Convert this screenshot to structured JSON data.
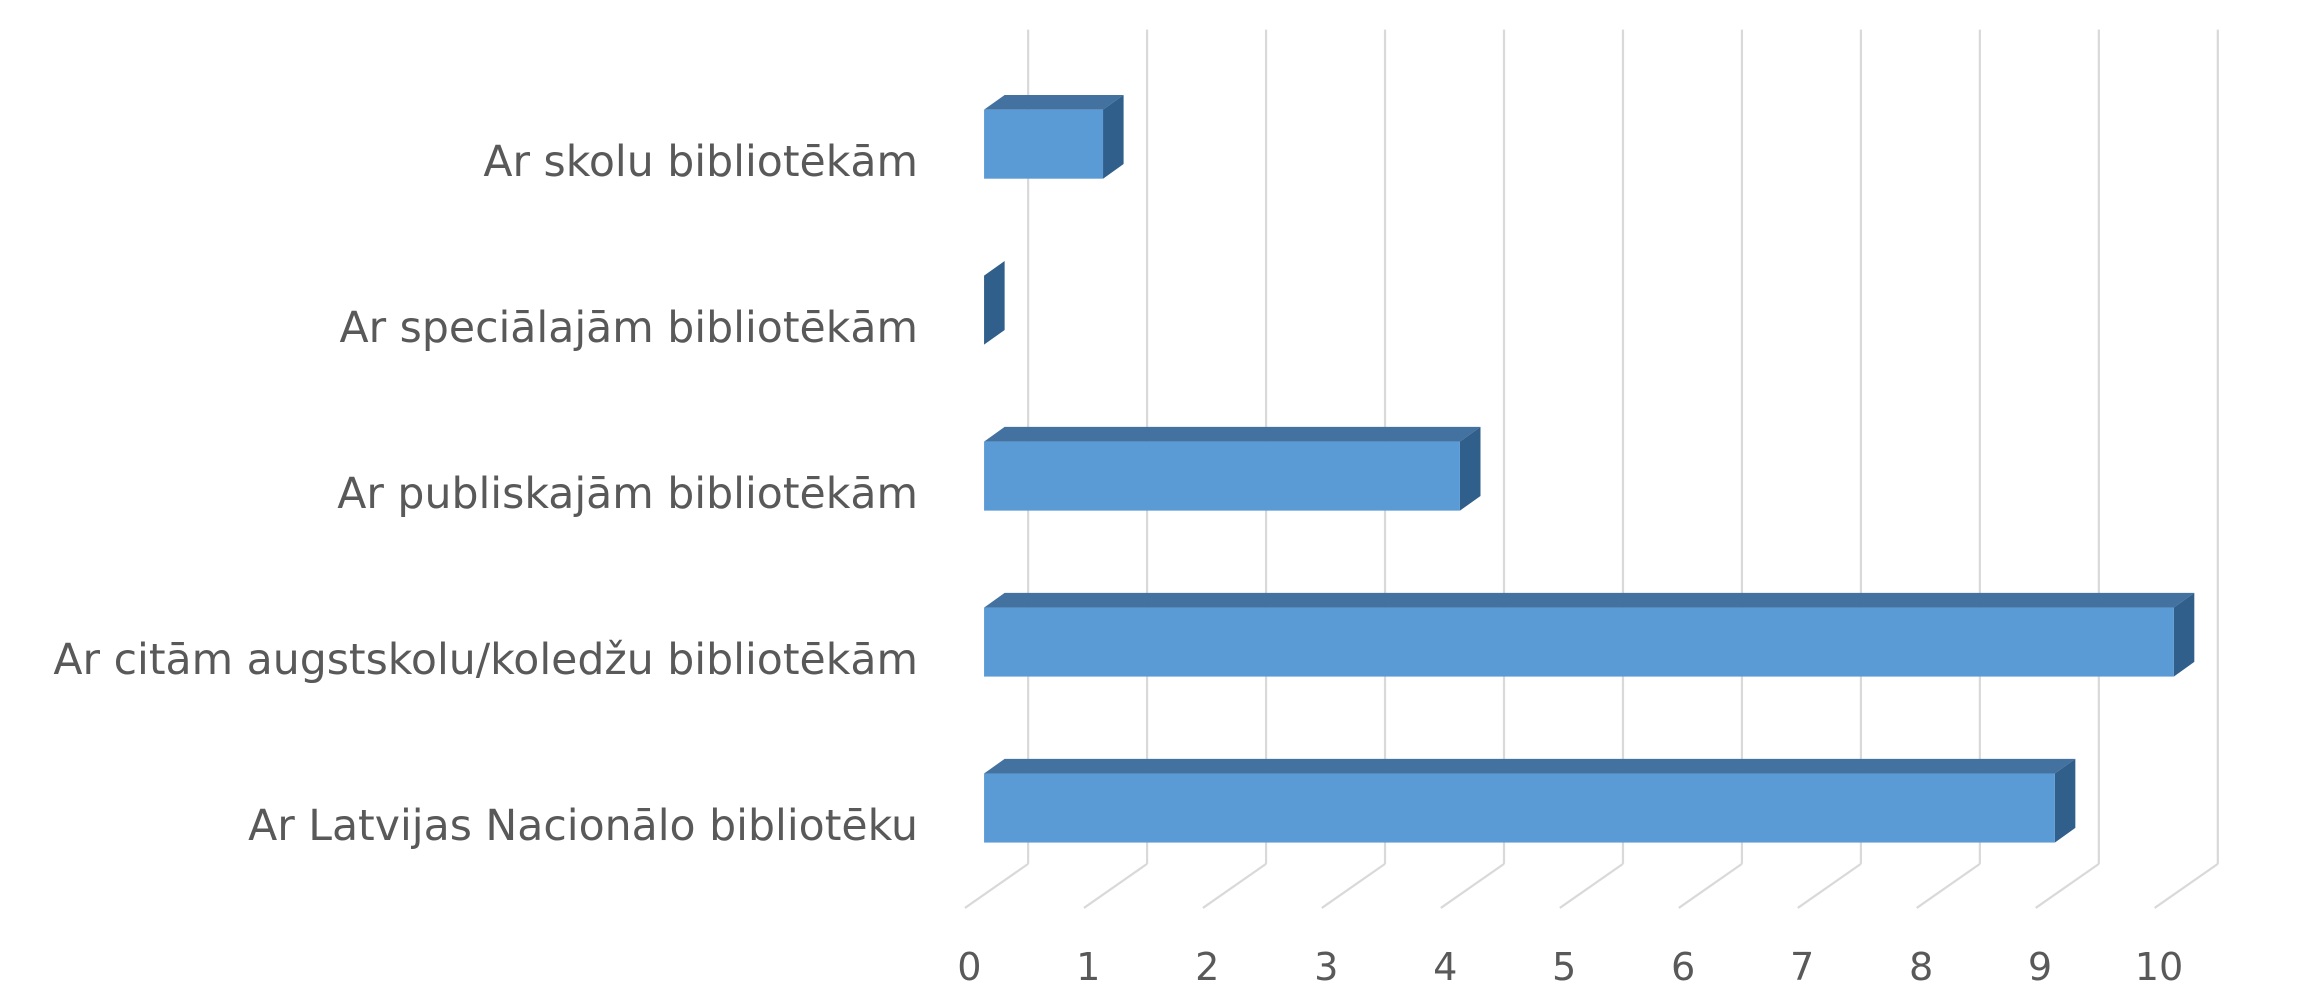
{
  "chart_data": {
    "type": "bar3d-horizontal",
    "categories": [
      "Ar skolu bibliotēkām",
      "Ar speciālajām bibliotēkām",
      "Ar publiskajām bibliotēkām",
      "Ar citām augstskolu/koledžu bibliotēkām",
      "Ar Latvijas Nacionālo bibliotēku"
    ],
    "values": [
      1,
      0,
      4,
      10,
      9
    ],
    "color": "#5b9bd5",
    "xlim": [
      0,
      10
    ],
    "xticks": [
      0,
      1,
      2,
      3,
      4,
      5,
      6,
      7,
      8,
      9,
      10
    ],
    "grid": true
  }
}
